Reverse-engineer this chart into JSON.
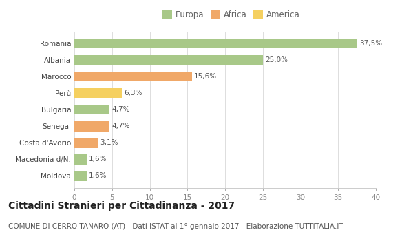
{
  "categories": [
    "Moldova",
    "Macedonia d/N.",
    "Costa d'Avorio",
    "Senegal",
    "Bulgaria",
    "Perù",
    "Marocco",
    "Albania",
    "Romania"
  ],
  "values": [
    1.6,
    1.6,
    3.1,
    4.7,
    4.7,
    6.3,
    15.6,
    25.0,
    37.5
  ],
  "labels": [
    "1,6%",
    "1,6%",
    "3,1%",
    "4,7%",
    "4,7%",
    "6,3%",
    "15,6%",
    "25,0%",
    "37,5%"
  ],
  "colors": [
    "#a8c888",
    "#a8c888",
    "#f0a868",
    "#f0a868",
    "#a8c888",
    "#f5d060",
    "#f0a868",
    "#a8c888",
    "#a8c888"
  ],
  "legend": [
    {
      "label": "Europa",
      "color": "#a8c888"
    },
    {
      "label": "Africa",
      "color": "#f0a868"
    },
    {
      "label": "America",
      "color": "#f5d060"
    }
  ],
  "title": "Cittadini Stranieri per Cittadinanza - 2017",
  "subtitle": "COMUNE DI CERRO TANARO (AT) - Dati ISTAT al 1° gennaio 2017 - Elaborazione TUTTITALIA.IT",
  "xlim": [
    0,
    40
  ],
  "xticks": [
    0,
    5,
    10,
    15,
    20,
    25,
    30,
    35,
    40
  ],
  "background_color": "#ffffff",
  "grid_color": "#dddddd",
  "bar_height": 0.6,
  "title_fontsize": 10,
  "subtitle_fontsize": 7.5,
  "label_fontsize": 7.5,
  "tick_fontsize": 7.5,
  "legend_fontsize": 8.5
}
